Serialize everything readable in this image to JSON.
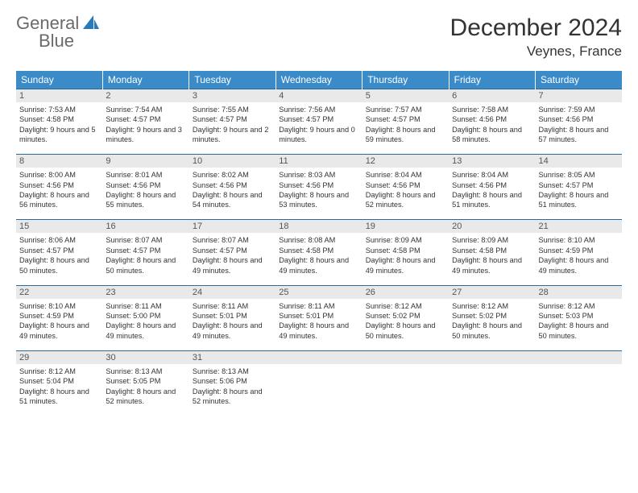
{
  "brand": {
    "word1": "General",
    "word2": "Blue",
    "word1_color": "#6a6a6a",
    "word2_color": "#2a7ab8"
  },
  "title": "December 2024",
  "location": "Veynes, France",
  "header_bg": "#3b8bc9",
  "header_text_color": "#ffffff",
  "daynum_bg": "#e9e9e9",
  "week_border_color": "#2a6a9c",
  "weekdays": [
    "Sunday",
    "Monday",
    "Tuesday",
    "Wednesday",
    "Thursday",
    "Friday",
    "Saturday"
  ],
  "weeks": [
    [
      {
        "n": "1",
        "sr": "Sunrise: 7:53 AM",
        "ss": "Sunset: 4:58 PM",
        "dl": "Daylight: 9 hours and 5 minutes."
      },
      {
        "n": "2",
        "sr": "Sunrise: 7:54 AM",
        "ss": "Sunset: 4:57 PM",
        "dl": "Daylight: 9 hours and 3 minutes."
      },
      {
        "n": "3",
        "sr": "Sunrise: 7:55 AM",
        "ss": "Sunset: 4:57 PM",
        "dl": "Daylight: 9 hours and 2 minutes."
      },
      {
        "n": "4",
        "sr": "Sunrise: 7:56 AM",
        "ss": "Sunset: 4:57 PM",
        "dl": "Daylight: 9 hours and 0 minutes."
      },
      {
        "n": "5",
        "sr": "Sunrise: 7:57 AM",
        "ss": "Sunset: 4:57 PM",
        "dl": "Daylight: 8 hours and 59 minutes."
      },
      {
        "n": "6",
        "sr": "Sunrise: 7:58 AM",
        "ss": "Sunset: 4:56 PM",
        "dl": "Daylight: 8 hours and 58 minutes."
      },
      {
        "n": "7",
        "sr": "Sunrise: 7:59 AM",
        "ss": "Sunset: 4:56 PM",
        "dl": "Daylight: 8 hours and 57 minutes."
      }
    ],
    [
      {
        "n": "8",
        "sr": "Sunrise: 8:00 AM",
        "ss": "Sunset: 4:56 PM",
        "dl": "Daylight: 8 hours and 56 minutes."
      },
      {
        "n": "9",
        "sr": "Sunrise: 8:01 AM",
        "ss": "Sunset: 4:56 PM",
        "dl": "Daylight: 8 hours and 55 minutes."
      },
      {
        "n": "10",
        "sr": "Sunrise: 8:02 AM",
        "ss": "Sunset: 4:56 PM",
        "dl": "Daylight: 8 hours and 54 minutes."
      },
      {
        "n": "11",
        "sr": "Sunrise: 8:03 AM",
        "ss": "Sunset: 4:56 PM",
        "dl": "Daylight: 8 hours and 53 minutes."
      },
      {
        "n": "12",
        "sr": "Sunrise: 8:04 AM",
        "ss": "Sunset: 4:56 PM",
        "dl": "Daylight: 8 hours and 52 minutes."
      },
      {
        "n": "13",
        "sr": "Sunrise: 8:04 AM",
        "ss": "Sunset: 4:56 PM",
        "dl": "Daylight: 8 hours and 51 minutes."
      },
      {
        "n": "14",
        "sr": "Sunrise: 8:05 AM",
        "ss": "Sunset: 4:57 PM",
        "dl": "Daylight: 8 hours and 51 minutes."
      }
    ],
    [
      {
        "n": "15",
        "sr": "Sunrise: 8:06 AM",
        "ss": "Sunset: 4:57 PM",
        "dl": "Daylight: 8 hours and 50 minutes."
      },
      {
        "n": "16",
        "sr": "Sunrise: 8:07 AM",
        "ss": "Sunset: 4:57 PM",
        "dl": "Daylight: 8 hours and 50 minutes."
      },
      {
        "n": "17",
        "sr": "Sunrise: 8:07 AM",
        "ss": "Sunset: 4:57 PM",
        "dl": "Daylight: 8 hours and 49 minutes."
      },
      {
        "n": "18",
        "sr": "Sunrise: 8:08 AM",
        "ss": "Sunset: 4:58 PM",
        "dl": "Daylight: 8 hours and 49 minutes."
      },
      {
        "n": "19",
        "sr": "Sunrise: 8:09 AM",
        "ss": "Sunset: 4:58 PM",
        "dl": "Daylight: 8 hours and 49 minutes."
      },
      {
        "n": "20",
        "sr": "Sunrise: 8:09 AM",
        "ss": "Sunset: 4:58 PM",
        "dl": "Daylight: 8 hours and 49 minutes."
      },
      {
        "n": "21",
        "sr": "Sunrise: 8:10 AM",
        "ss": "Sunset: 4:59 PM",
        "dl": "Daylight: 8 hours and 49 minutes."
      }
    ],
    [
      {
        "n": "22",
        "sr": "Sunrise: 8:10 AM",
        "ss": "Sunset: 4:59 PM",
        "dl": "Daylight: 8 hours and 49 minutes."
      },
      {
        "n": "23",
        "sr": "Sunrise: 8:11 AM",
        "ss": "Sunset: 5:00 PM",
        "dl": "Daylight: 8 hours and 49 minutes."
      },
      {
        "n": "24",
        "sr": "Sunrise: 8:11 AM",
        "ss": "Sunset: 5:01 PM",
        "dl": "Daylight: 8 hours and 49 minutes."
      },
      {
        "n": "25",
        "sr": "Sunrise: 8:11 AM",
        "ss": "Sunset: 5:01 PM",
        "dl": "Daylight: 8 hours and 49 minutes."
      },
      {
        "n": "26",
        "sr": "Sunrise: 8:12 AM",
        "ss": "Sunset: 5:02 PM",
        "dl": "Daylight: 8 hours and 50 minutes."
      },
      {
        "n": "27",
        "sr": "Sunrise: 8:12 AM",
        "ss": "Sunset: 5:02 PM",
        "dl": "Daylight: 8 hours and 50 minutes."
      },
      {
        "n": "28",
        "sr": "Sunrise: 8:12 AM",
        "ss": "Sunset: 5:03 PM",
        "dl": "Daylight: 8 hours and 50 minutes."
      }
    ],
    [
      {
        "n": "29",
        "sr": "Sunrise: 8:12 AM",
        "ss": "Sunset: 5:04 PM",
        "dl": "Daylight: 8 hours and 51 minutes."
      },
      {
        "n": "30",
        "sr": "Sunrise: 8:13 AM",
        "ss": "Sunset: 5:05 PM",
        "dl": "Daylight: 8 hours and 52 minutes."
      },
      {
        "n": "31",
        "sr": "Sunrise: 8:13 AM",
        "ss": "Sunset: 5:06 PM",
        "dl": "Daylight: 8 hours and 52 minutes."
      },
      {
        "n": "",
        "sr": "",
        "ss": "",
        "dl": ""
      },
      {
        "n": "",
        "sr": "",
        "ss": "",
        "dl": ""
      },
      {
        "n": "",
        "sr": "",
        "ss": "",
        "dl": ""
      },
      {
        "n": "",
        "sr": "",
        "ss": "",
        "dl": ""
      }
    ]
  ]
}
